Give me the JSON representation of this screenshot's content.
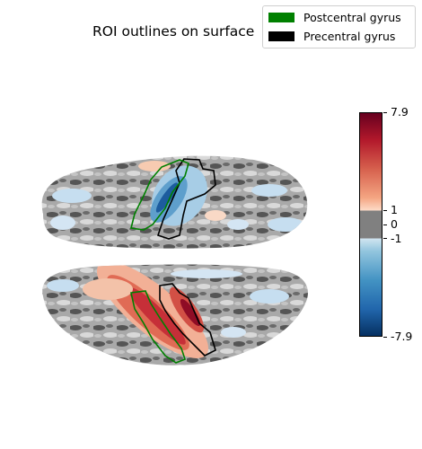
{
  "figure": {
    "title": "ROI outlines on surface"
  },
  "legend": {
    "entries": [
      {
        "label": "Postcentral gyrus",
        "color": "#008000"
      },
      {
        "label": "Precentral gyrus",
        "color": "#000000"
      }
    ]
  },
  "colorbar": {
    "colormap": "RdBu_r",
    "vmin": -7.9,
    "vmax": 7.9,
    "threshold": 1,
    "threshold_color": "#808080",
    "ticks": [
      {
        "value": 7.9,
        "label": "7.9"
      },
      {
        "value": 1,
        "label": "1"
      },
      {
        "value": 0,
        "label": "0"
      },
      {
        "value": -1,
        "label": "-1"
      },
      {
        "value": -7.9,
        "label": "-7.9"
      }
    ]
  },
  "views": [
    {
      "name": "upper hemisphere view",
      "dominant_activation": "negative"
    },
    {
      "name": "lower hemisphere view",
      "dominant_activation": "positive"
    }
  ]
}
